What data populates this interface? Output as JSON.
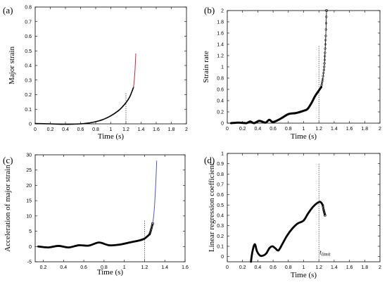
{
  "chart_data": [
    {
      "type": "line",
      "panel_label": "(a)",
      "xlabel": "Time (s)",
      "ylabel": "Major strain",
      "xlim": [
        0,
        2
      ],
      "ylim": [
        0,
        0.8
      ],
      "xticks": [
        0,
        0.2,
        0.4,
        0.6,
        0.8,
        1,
        1.2,
        1.4,
        1.6,
        1.8,
        2
      ],
      "xtick_labels": [
        "0",
        "0.2",
        "0.4",
        "0.6",
        "0.8",
        "1",
        "1.2",
        "1.4",
        "1.6",
        "1.8",
        "2"
      ],
      "yticks": [
        0,
        0.1,
        0.2,
        0.3,
        0.4,
        0.5,
        0.6,
        0.7,
        0.8
      ],
      "ytick_labels": [
        "0",
        "0.1",
        "0.2",
        "0.3",
        "0.4",
        "0.5",
        "0.6",
        "0.7",
        "0.8"
      ],
      "vline_x": 1.2,
      "vline_top": 0.21,
      "series": [
        {
          "color": "#000000",
          "width": 1.6,
          "x": [
            0,
            0.2,
            0.4,
            0.6,
            0.7,
            0.8,
            0.9,
            1.0,
            1.1,
            1.15,
            1.2,
            1.25,
            1.3
          ],
          "y": [
            0.002,
            0.0,
            -0.003,
            0.0,
            0.005,
            0.015,
            0.03,
            0.055,
            0.09,
            0.115,
            0.145,
            0.185,
            0.25
          ]
        },
        {
          "color": "#cc2244",
          "width": 1.0,
          "x": [
            1.3,
            1.31,
            1.32,
            1.33
          ],
          "y": [
            0.25,
            0.3,
            0.37,
            0.48
          ]
        }
      ]
    },
    {
      "type": "line",
      "panel_label": "(b)",
      "xlabel": "Time (s)",
      "ylabel": "Strain rate",
      "xlim": [
        0,
        2
      ],
      "ylim": [
        0,
        2
      ],
      "xticks": [
        0,
        0.2,
        0.4,
        0.6,
        0.8,
        1,
        1.2,
        1.4,
        1.6,
        1.8,
        2
      ],
      "xtick_labels": [
        "0",
        "0.2",
        "0.4",
        "0.6",
        "0.8",
        "1",
        "1.2",
        "1.4",
        "1.6",
        "1.8",
        "2"
      ],
      "yticks": [
        0,
        0.2,
        0.4,
        0.6,
        0.8,
        1,
        1.2,
        1.4,
        1.6,
        1.8,
        2
      ],
      "ytick_labels": [
        "0",
        "0.2",
        "0.4",
        "0.6",
        "0.8",
        "1",
        "1.2",
        "1.4",
        "1.6",
        "1.8",
        "2"
      ],
      "vline_x": 1.2,
      "vline_top": 1.38,
      "series": [
        {
          "color": "#000000",
          "width": 3.0,
          "x": [
            0.05,
            0.15,
            0.25,
            0.3,
            0.35,
            0.42,
            0.5,
            0.55,
            0.6,
            0.7,
            0.8,
            0.9,
            1.0,
            1.05,
            1.1,
            1.15,
            1.2,
            1.23
          ],
          "y": [
            0.0,
            0.01,
            0.0,
            0.03,
            0.0,
            0.04,
            0.01,
            0.06,
            0.02,
            0.08,
            0.16,
            0.18,
            0.22,
            0.25,
            0.35,
            0.48,
            0.58,
            0.64
          ]
        },
        {
          "color": "#000000",
          "width": 0.8,
          "markers": true,
          "x": [
            1.23,
            1.25,
            1.27,
            1.28,
            1.29,
            1.3
          ],
          "y": [
            0.64,
            0.78,
            1.0,
            1.25,
            1.55,
            2.0
          ]
        }
      ]
    },
    {
      "type": "line",
      "panel_label": "(c)",
      "xlabel": "Time (s)",
      "ylabel": "Acceleration of major strain",
      "xlim": [
        0.12,
        1.6
      ],
      "ylim": [
        -5,
        30
      ],
      "xticks": [
        0.2,
        0.4,
        0.6,
        0.8,
        1,
        1.2,
        1.4,
        1.6
      ],
      "xtick_labels": [
        "0.2",
        "0.4",
        "0.6",
        "0.8",
        "1",
        "1.2",
        "1.4",
        "1.6"
      ],
      "yticks": [
        -5,
        0,
        5,
        10,
        15,
        20,
        25,
        30
      ],
      "ytick_labels": [
        "-5",
        "0",
        "5",
        "10",
        "15",
        "20",
        "25",
        "30"
      ],
      "vline_x": 1.2,
      "vline_top": 8.5,
      "series": [
        {
          "color": "#000000",
          "width": 2.8,
          "x": [
            0.15,
            0.25,
            0.35,
            0.45,
            0.55,
            0.65,
            0.75,
            0.85,
            0.95,
            1.05,
            1.15,
            1.2,
            1.25
          ],
          "y": [
            0.0,
            -0.3,
            0.2,
            -0.3,
            0.4,
            0.3,
            1.3,
            0.4,
            0.6,
            1.3,
            2.0,
            2.6,
            4.0
          ]
        },
        {
          "color": "#000000",
          "width": 0.8,
          "markers": true,
          "x": [
            1.25,
            1.26,
            1.27,
            1.28
          ],
          "y": [
            4.0,
            5.0,
            6.2,
            7.5
          ]
        },
        {
          "color": "#5555cc",
          "width": 1.0,
          "x": [
            1.28,
            1.29,
            1.3,
            1.31,
            1.32
          ],
          "y": [
            7.5,
            10.0,
            14.0,
            20.0,
            28.0
          ]
        }
      ]
    },
    {
      "type": "line",
      "panel_label": "(d)",
      "xlabel": "Time (s)",
      "ylabel": "Linear regression coefficient",
      "xlim": [
        0,
        2
      ],
      "ylim": [
        -0.05,
        1
      ],
      "xticks": [
        0,
        0.2,
        0.4,
        0.6,
        0.8,
        1,
        1.2,
        1.4,
        1.6,
        1.8,
        2
      ],
      "xtick_labels": [
        "0",
        "0.2",
        "0.4",
        "0.6",
        "0.8",
        "1",
        "1.2",
        "1.4",
        "1.6",
        "1.8",
        "2"
      ],
      "yticks": [
        0,
        0.1,
        0.2,
        0.3,
        0.4,
        0.5,
        0.6,
        0.7,
        0.8,
        0.9,
        1
      ],
      "ytick_labels": [
        "0",
        "0.1",
        "0.2",
        "0.3",
        "0.4",
        "0.5",
        "0.6",
        "0.7",
        "0.8",
        "0.9",
        "1"
      ],
      "vline_x": 1.2,
      "vline_top": 0.9,
      "annotation": {
        "text_main": "t",
        "text_sub": "limit",
        "x": 1.21,
        "y": 0.02
      },
      "series": [
        {
          "color": "#000000",
          "width": 2.8,
          "x": [
            0.31,
            0.33,
            0.36,
            0.39,
            0.43,
            0.47,
            0.51,
            0.55,
            0.59,
            0.63,
            0.67,
            0.72,
            0.78,
            0.85,
            0.92,
            1.0,
            1.06,
            1.12,
            1.18,
            1.22,
            1.25
          ],
          "y": [
            -0.05,
            0.05,
            0.12,
            0.05,
            0.01,
            0.01,
            0.03,
            0.08,
            0.1,
            0.08,
            0.06,
            0.12,
            0.2,
            0.27,
            0.32,
            0.35,
            0.42,
            0.48,
            0.52,
            0.53,
            0.5
          ]
        },
        {
          "color": "#000000",
          "width": 0.8,
          "markers": true,
          "x": [
            1.25,
            1.26,
            1.27,
            1.28
          ],
          "y": [
            0.5,
            0.46,
            0.43,
            0.4
          ]
        }
      ]
    }
  ]
}
